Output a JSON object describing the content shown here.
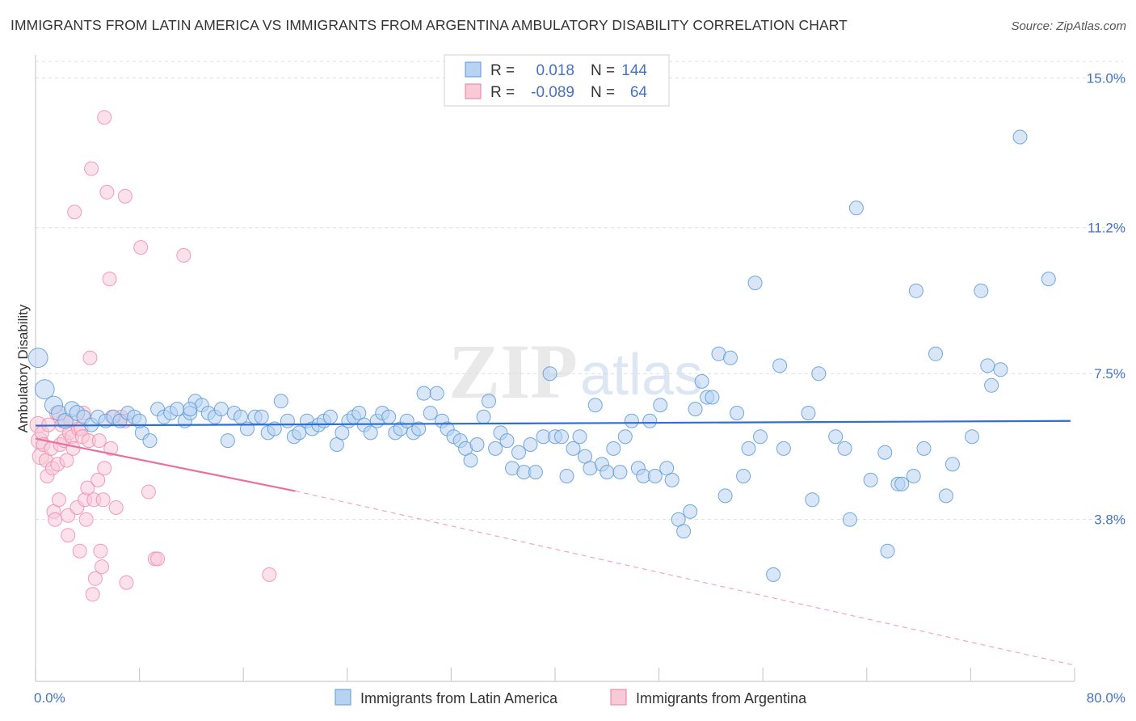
{
  "title": "IMMIGRANTS FROM LATIN AMERICA VS IMMIGRANTS FROM ARGENTINA AMBULATORY DISABILITY CORRELATION CHART",
  "source": "Source: ZipAtlas.com",
  "watermark": {
    "zip": "ZIP",
    "atlas": "atlas"
  },
  "legend_stats": [
    {
      "r_label": "R =",
      "r_value": "0.018",
      "n_label": "N =",
      "n_value": "144",
      "color": "#6fa3e0",
      "fill": "#b8d2f2"
    },
    {
      "r_label": "R =",
      "r_value": "-0.089",
      "n_label": "N =",
      "n_value": "64",
      "color": "#f08cab",
      "fill": "#f8c9d7"
    }
  ],
  "chart_data": {
    "type": "scatter",
    "title": "IMMIGRANTS FROM LATIN AMERICA VS IMMIGRANTS FROM ARGENTINA AMBULATORY DISABILITY CORRELATION CHART",
    "xlabel": "",
    "ylabel": "Ambulatory Disability",
    "xlim": [
      0,
      80
    ],
    "ylim": [
      0,
      15.5
    ],
    "x_tick_labels": [
      "0.0%",
      "80.0%"
    ],
    "y_ticks": [
      3.8,
      7.5,
      11.2,
      15.0
    ],
    "y_tick_labels": [
      "3.8%",
      "7.5%",
      "11.2%",
      "15.0%"
    ],
    "grid": true,
    "legend_position": "bottom",
    "series": [
      {
        "name": "Immigrants from Latin America",
        "color": "#5b9bd5",
        "fill": "#b8d2f2",
        "trend": {
          "x": [
            0,
            80
          ],
          "y": [
            6.18,
            6.3
          ],
          "dashed_from": null
        },
        "points": [
          [
            0.2,
            7.9,
            14
          ],
          [
            0.7,
            7.1,
            14
          ],
          [
            1.4,
            6.7,
            13
          ],
          [
            1.8,
            6.5,
            11
          ],
          [
            2.3,
            6.3,
            11
          ],
          [
            2.8,
            6.6,
            11
          ],
          [
            3.2,
            6.5,
            11
          ],
          [
            3.7,
            6.4,
            10
          ],
          [
            4.3,
            6.2,
            10
          ],
          [
            4.8,
            6.4,
            10
          ],
          [
            5.4,
            6.3,
            10
          ],
          [
            6.0,
            6.4,
            10
          ],
          [
            6.5,
            6.3,
            10
          ],
          [
            7.1,
            6.5,
            10
          ],
          [
            7.6,
            6.4,
            10
          ],
          [
            8.2,
            6.0,
            10
          ],
          [
            8.8,
            5.8,
            10
          ],
          [
            9.4,
            6.6,
            10
          ],
          [
            9.9,
            6.4,
            10
          ],
          [
            10.4,
            6.5,
            10
          ],
          [
            10.9,
            6.6,
            10
          ],
          [
            11.5,
            6.3,
            10
          ],
          [
            11.9,
            6.5,
            10
          ],
          [
            12.3,
            6.8,
            10
          ],
          [
            12.8,
            6.7,
            10
          ],
          [
            13.3,
            6.5,
            10
          ],
          [
            13.8,
            6.4,
            10
          ],
          [
            14.3,
            6.6,
            10
          ],
          [
            14.8,
            5.8,
            10
          ],
          [
            15.3,
            6.5,
            10
          ],
          [
            15.8,
            6.4,
            10
          ],
          [
            16.3,
            6.1,
            10
          ],
          [
            16.9,
            6.4,
            10
          ],
          [
            17.4,
            6.4,
            10
          ],
          [
            17.9,
            6.0,
            10
          ],
          [
            18.4,
            6.1,
            10
          ],
          [
            18.9,
            6.8,
            10
          ],
          [
            19.4,
            6.3,
            10
          ],
          [
            19.9,
            5.9,
            10
          ],
          [
            20.3,
            6.0,
            10
          ],
          [
            20.9,
            6.3,
            10
          ],
          [
            21.3,
            6.1,
            10
          ],
          [
            21.8,
            6.2,
            10
          ],
          [
            22.2,
            6.3,
            10
          ],
          [
            22.7,
            6.4,
            10
          ],
          [
            23.2,
            5.7,
            10
          ],
          [
            23.6,
            6.0,
            10
          ],
          [
            24.1,
            6.3,
            10
          ],
          [
            24.5,
            6.4,
            10
          ],
          [
            24.9,
            6.5,
            10
          ],
          [
            25.3,
            6.2,
            10
          ],
          [
            25.8,
            6.0,
            10
          ],
          [
            26.3,
            6.3,
            10
          ],
          [
            26.7,
            6.5,
            10
          ],
          [
            27.2,
            6.4,
            10
          ],
          [
            27.7,
            6.0,
            10
          ],
          [
            28.1,
            6.1,
            10
          ],
          [
            28.6,
            6.3,
            10
          ],
          [
            29.1,
            6.0,
            10
          ],
          [
            29.5,
            6.1,
            10
          ],
          [
            29.9,
            7.0,
            10
          ],
          [
            30.4,
            6.5,
            10
          ],
          [
            30.9,
            7.0,
            10
          ],
          [
            31.3,
            6.3,
            10
          ],
          [
            31.7,
            6.1,
            10
          ],
          [
            32.2,
            5.9,
            10
          ],
          [
            32.7,
            5.8,
            10
          ],
          [
            33.1,
            5.6,
            10
          ],
          [
            33.5,
            5.3,
            10
          ],
          [
            34.0,
            5.7,
            10
          ],
          [
            34.5,
            6.4,
            10
          ],
          [
            34.9,
            6.8,
            10
          ],
          [
            35.4,
            5.6,
            10
          ],
          [
            35.8,
            6.0,
            10
          ],
          [
            36.3,
            5.8,
            10
          ],
          [
            36.7,
            5.1,
            10
          ],
          [
            37.2,
            5.5,
            10
          ],
          [
            37.6,
            5.0,
            10
          ],
          [
            38.1,
            5.7,
            10
          ],
          [
            38.5,
            5.0,
            10
          ],
          [
            39.1,
            5.9,
            10
          ],
          [
            39.6,
            7.5,
            10
          ],
          [
            40.0,
            5.9,
            10
          ],
          [
            40.5,
            5.9,
            10
          ],
          [
            40.9,
            4.9,
            10
          ],
          [
            41.4,
            5.6,
            10
          ],
          [
            41.9,
            5.9,
            10
          ],
          [
            42.3,
            5.4,
            10
          ],
          [
            42.7,
            5.1,
            10
          ],
          [
            43.1,
            6.7,
            10
          ],
          [
            43.6,
            5.2,
            10
          ],
          [
            44.0,
            5.0,
            10
          ],
          [
            44.5,
            5.6,
            10
          ],
          [
            45.0,
            5.0,
            10
          ],
          [
            45.4,
            5.9,
            10
          ],
          [
            45.9,
            6.3,
            10
          ],
          [
            46.4,
            5.1,
            10
          ],
          [
            46.8,
            4.9,
            10
          ],
          [
            47.3,
            6.3,
            10
          ],
          [
            47.7,
            4.9,
            10
          ],
          [
            48.1,
            6.7,
            10
          ],
          [
            48.6,
            5.1,
            10
          ],
          [
            49.0,
            4.8,
            10
          ],
          [
            49.5,
            3.8,
            10
          ],
          [
            49.9,
            3.5,
            10
          ],
          [
            50.4,
            4.0,
            10
          ],
          [
            50.8,
            6.6,
            10
          ],
          [
            51.3,
            7.3,
            10
          ],
          [
            51.7,
            6.9,
            10
          ],
          [
            52.1,
            6.9,
            10
          ],
          [
            52.6,
            8.0,
            10
          ],
          [
            53.1,
            4.4,
            10
          ],
          [
            53.5,
            7.9,
            10
          ],
          [
            54.0,
            6.5,
            10
          ],
          [
            54.5,
            4.9,
            10
          ],
          [
            54.9,
            5.6,
            10
          ],
          [
            55.4,
            9.8,
            10
          ],
          [
            55.8,
            5.9,
            10
          ],
          [
            56.8,
            2.4,
            10
          ],
          [
            57.3,
            7.7,
            10
          ],
          [
            57.6,
            5.6,
            10
          ],
          [
            59.5,
            6.5,
            10
          ],
          [
            59.8,
            4.3,
            10
          ],
          [
            60.3,
            7.5,
            10
          ],
          [
            61.6,
            5.9,
            10
          ],
          [
            62.3,
            5.6,
            10
          ],
          [
            62.7,
            3.8,
            10
          ],
          [
            63.2,
            11.7,
            10
          ],
          [
            64.3,
            4.8,
            10
          ],
          [
            65.4,
            5.5,
            10
          ],
          [
            65.6,
            3.0,
            10
          ],
          [
            66.4,
            4.7,
            10
          ],
          [
            66.7,
            4.7,
            10
          ],
          [
            67.6,
            4.9,
            10
          ],
          [
            67.8,
            9.6,
            10
          ],
          [
            68.4,
            5.6,
            10
          ],
          [
            69.3,
            8.0,
            10
          ],
          [
            70.1,
            4.4,
            10
          ],
          [
            70.6,
            5.2,
            10
          ],
          [
            72.1,
            5.9,
            10
          ],
          [
            72.8,
            9.6,
            10
          ],
          [
            73.3,
            7.7,
            10
          ],
          [
            73.6,
            7.2,
            10
          ],
          [
            74.3,
            7.6,
            10
          ],
          [
            75.8,
            13.5,
            10
          ],
          [
            78.0,
            9.9,
            10
          ],
          [
            11.9,
            6.6,
            10
          ],
          [
            8.0,
            6.3,
            10
          ]
        ]
      },
      {
        "name": "Immigrants from Argentina",
        "color": "#f08cab",
        "fill": "#f8c9d7",
        "trend": {
          "x": [
            0,
            20
          ],
          "y": [
            5.85,
            4.52
          ],
          "dashed_to": [
            80,
            0.1
          ]
        },
        "points": [
          [
            0.2,
            6.2,
            12
          ],
          [
            0.3,
            5.8,
            12
          ],
          [
            0.4,
            5.4,
            12
          ],
          [
            0.5,
            6.0,
            10
          ],
          [
            0.6,
            5.7,
            10
          ],
          [
            0.8,
            5.3,
            10
          ],
          [
            0.9,
            4.9,
            10
          ],
          [
            1.0,
            6.2,
            10
          ],
          [
            1.2,
            5.6,
            10
          ],
          [
            1.3,
            5.1,
            10
          ],
          [
            1.4,
            4.0,
            10
          ],
          [
            1.5,
            3.8,
            10
          ],
          [
            1.6,
            6.5,
            10
          ],
          [
            1.7,
            5.2,
            10
          ],
          [
            1.8,
            4.3,
            10
          ],
          [
            1.9,
            5.7,
            10
          ],
          [
            2.0,
            6.2,
            10
          ],
          [
            2.1,
            6.3,
            10
          ],
          [
            2.2,
            5.8,
            10
          ],
          [
            2.4,
            5.3,
            10
          ],
          [
            2.5,
            3.9,
            10
          ],
          [
            2.5,
            3.4,
            10
          ],
          [
            2.6,
            6.0,
            10
          ],
          [
            2.7,
            6.3,
            10
          ],
          [
            2.8,
            5.9,
            10
          ],
          [
            2.9,
            5.6,
            10
          ],
          [
            3.0,
            11.6,
            10
          ],
          [
            3.2,
            4.1,
            10
          ],
          [
            3.3,
            6.1,
            10
          ],
          [
            3.4,
            3.0,
            10
          ],
          [
            3.5,
            6.1,
            10
          ],
          [
            3.6,
            5.9,
            10
          ],
          [
            3.7,
            6.5,
            10
          ],
          [
            3.8,
            4.3,
            10
          ],
          [
            3.9,
            3.8,
            10
          ],
          [
            4.0,
            4.6,
            10
          ],
          [
            4.1,
            5.8,
            10
          ],
          [
            4.2,
            7.9,
            10
          ],
          [
            4.3,
            12.7,
            10
          ],
          [
            4.4,
            1.9,
            10
          ],
          [
            4.5,
            4.3,
            10
          ],
          [
            4.6,
            2.3,
            10
          ],
          [
            4.8,
            4.8,
            10
          ],
          [
            4.9,
            5.8,
            10
          ],
          [
            5.0,
            3.0,
            10
          ],
          [
            5.1,
            2.6,
            10
          ],
          [
            5.2,
            4.3,
            10
          ],
          [
            5.3,
            5.1,
            10
          ],
          [
            5.3,
            14.0,
            10
          ],
          [
            5.5,
            12.1,
            10
          ],
          [
            5.7,
            9.9,
            10
          ],
          [
            5.8,
            5.6,
            10
          ],
          [
            5.9,
            6.4,
            10
          ],
          [
            6.2,
            4.1,
            10
          ],
          [
            6.6,
            6.4,
            10
          ],
          [
            6.9,
            6.3,
            10
          ],
          [
            7.0,
            2.2,
            10
          ],
          [
            6.9,
            12.0,
            10
          ],
          [
            8.1,
            10.7,
            10
          ],
          [
            8.7,
            4.5,
            10
          ],
          [
            9.2,
            2.8,
            10
          ],
          [
            9.4,
            2.8,
            10
          ],
          [
            11.4,
            10.5,
            10
          ],
          [
            18.0,
            2.4,
            10
          ]
        ]
      }
    ]
  },
  "bottom_legend": [
    "Immigrants from Latin America",
    "Immigrants from Argentina"
  ]
}
